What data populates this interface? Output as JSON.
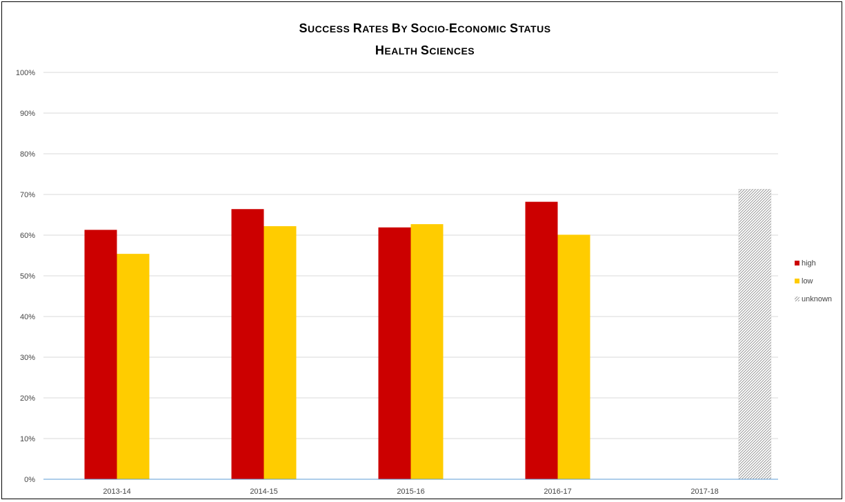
{
  "chart_data": {
    "type": "bar",
    "title": "Success Rates by Socio-Economic Status",
    "subtitle": "Health Sciences",
    "xlabel": "",
    "ylabel": "",
    "categories": [
      "2013-14",
      "2014-15",
      "2015-16",
      "2016-17",
      "2017-18"
    ],
    "series": [
      {
        "name": "high",
        "color": "#cc0000",
        "pattern": "solid",
        "values": [
          61.3,
          66.4,
          61.9,
          68.2,
          null
        ]
      },
      {
        "name": "low",
        "color": "#ffcc00",
        "pattern": "solid",
        "values": [
          55.4,
          62.2,
          62.7,
          60.1,
          null
        ]
      },
      {
        "name": "unknown",
        "color": "#999999",
        "pattern": "hatched",
        "values": [
          null,
          null,
          null,
          null,
          71.3
        ]
      }
    ],
    "ylim": [
      0,
      100
    ],
    "y_ticks": [
      "0%",
      "10%",
      "20%",
      "30%",
      "40%",
      "50%",
      "60%",
      "70%",
      "80%",
      "90%",
      "100%"
    ],
    "grid": true,
    "legend_position": "right"
  }
}
